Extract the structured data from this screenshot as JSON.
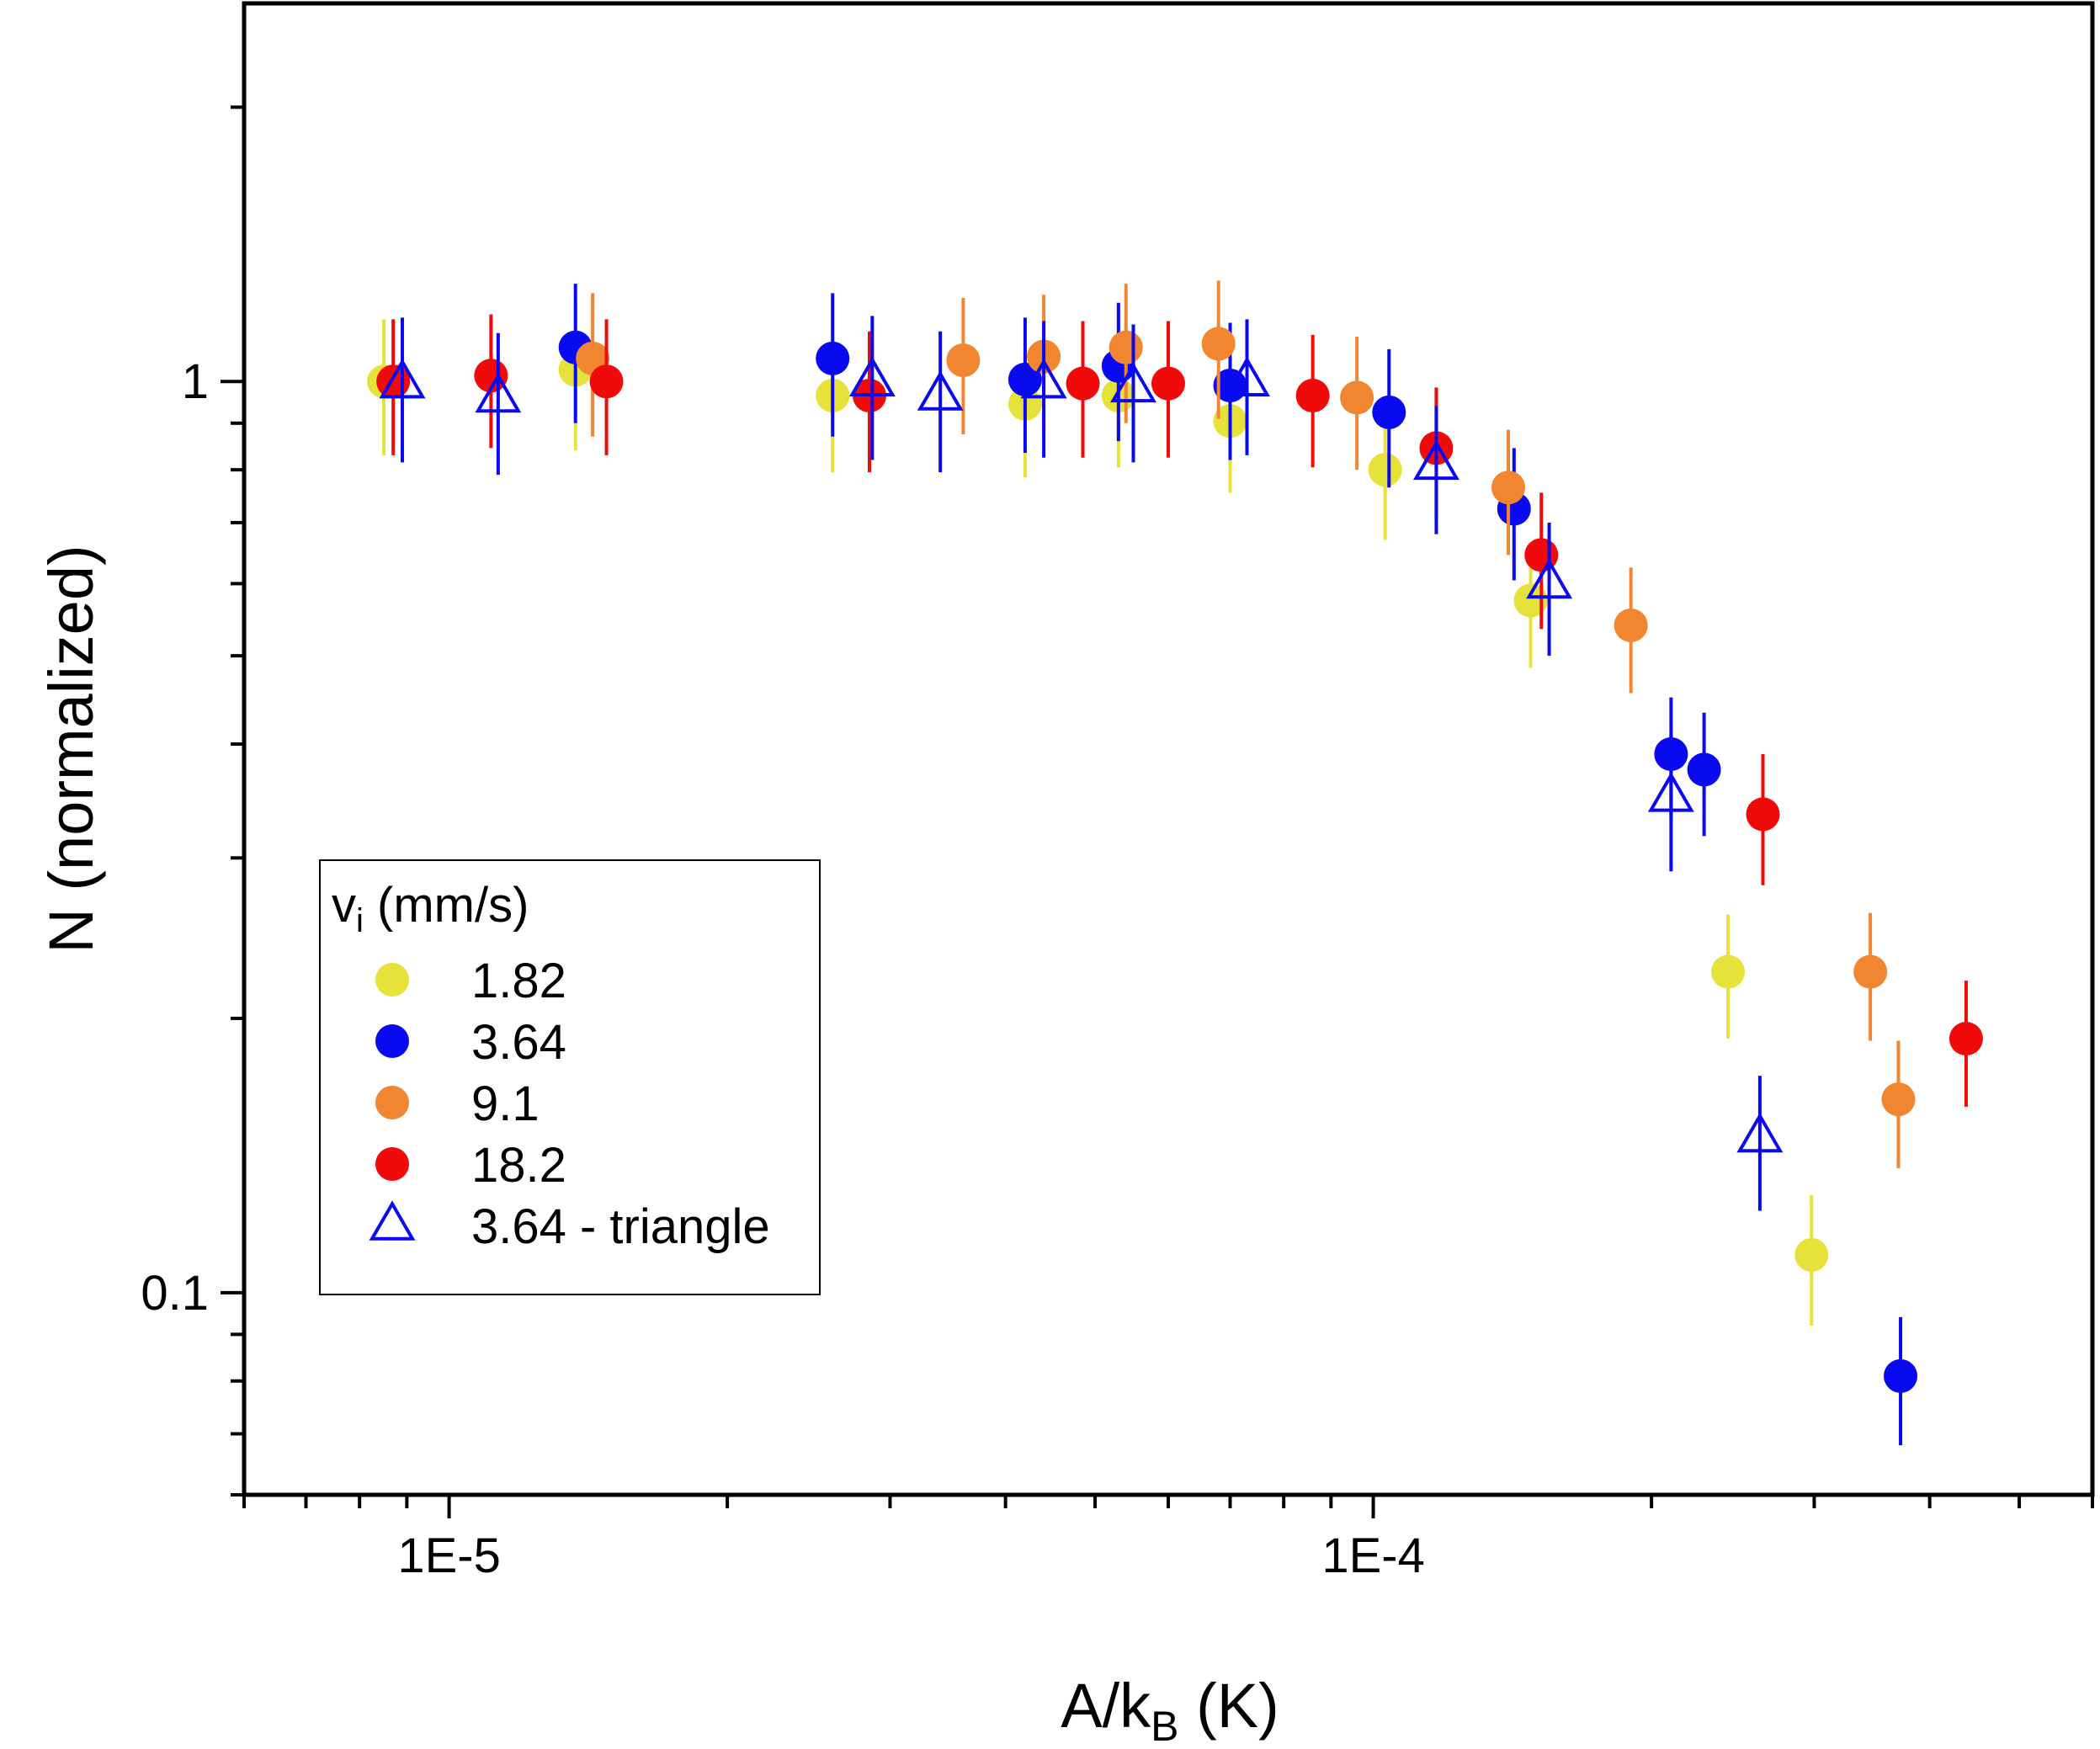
{
  "chart_data": {
    "type": "scatter",
    "xscale": "log",
    "yscale": "log",
    "xlabel": {
      "base": "A/k",
      "subscript": "B",
      "unit": " (K)"
    },
    "ylabel": "N (normalized)",
    "xlim": [
      6e-06,
      0.0006
    ],
    "ylim": [
      0.06,
      2.6
    ],
    "x_major_ticks": [
      {
        "value": 1e-05,
        "label": "1E-5"
      },
      {
        "value": 0.0001,
        "label": "1E-4"
      }
    ],
    "y_major_ticks": [
      {
        "value": 0.1,
        "label": "0.1"
      },
      {
        "value": 1,
        "label": "1"
      }
    ],
    "legend": {
      "title": {
        "base": "v",
        "subscript": "i",
        "rest": " (mm/s)"
      },
      "position": "bottom-left"
    },
    "series": [
      {
        "name": "1.82",
        "marker": "circle",
        "color": "#e6e23a",
        "points": [
          {
            "x": 8.5e-06,
            "y": 1.0,
            "err": 0.17
          },
          {
            "x": 1.37e-05,
            "y": 1.03,
            "err": 0.19
          },
          {
            "x": 2.6e-05,
            "y": 0.965,
            "err": 0.17
          },
          {
            "x": 4.2e-05,
            "y": 0.945,
            "err": 0.16
          },
          {
            "x": 5.3e-05,
            "y": 0.965,
            "err": 0.16
          },
          {
            "x": 7e-05,
            "y": 0.905,
            "err": 0.15
          },
          {
            "x": 0.000103,
            "y": 0.8,
            "err": 0.13
          },
          {
            "x": 0.000148,
            "y": 0.575,
            "err": 0.09
          },
          {
            "x": 0.000242,
            "y": 0.225,
            "err": 0.035
          },
          {
            "x": 0.000298,
            "y": 0.11,
            "err": 0.018
          }
        ]
      },
      {
        "name": "3.64",
        "marker": "circle",
        "color": "#0a0af0",
        "points": [
          {
            "x": 1.37e-05,
            "y": 1.09,
            "err": 0.19
          },
          {
            "x": 2.6e-05,
            "y": 1.06,
            "err": 0.19
          },
          {
            "x": 4.2e-05,
            "y": 1.005,
            "err": 0.17
          },
          {
            "x": 5.3e-05,
            "y": 1.04,
            "err": 0.18
          },
          {
            "x": 7e-05,
            "y": 0.99,
            "err": 0.17
          },
          {
            "x": 0.000104,
            "y": 0.925,
            "err": 0.16
          },
          {
            "x": 0.000142,
            "y": 0.725,
            "err": 0.12
          },
          {
            "x": 0.00021,
            "y": 0.39,
            "err": 0.06
          },
          {
            "x": 0.000228,
            "y": 0.375,
            "err": 0.058
          },
          {
            "x": 0.000372,
            "y": 0.081,
            "err": 0.013
          }
        ]
      },
      {
        "name": "9.1",
        "marker": "circle",
        "color": "#f28530",
        "points": [
          {
            "x": 1.43e-05,
            "y": 1.06,
            "err": 0.19
          },
          {
            "x": 3.6e-05,
            "y": 1.055,
            "err": 0.18
          },
          {
            "x": 4.4e-05,
            "y": 1.065,
            "err": 0.18
          },
          {
            "x": 5.4e-05,
            "y": 1.09,
            "err": 0.19
          },
          {
            "x": 6.8e-05,
            "y": 1.1,
            "err": 0.19
          },
          {
            "x": 9.6e-05,
            "y": 0.96,
            "err": 0.16
          },
          {
            "x": 0.00014,
            "y": 0.765,
            "err": 0.12
          },
          {
            "x": 0.00019,
            "y": 0.54,
            "err": 0.085
          },
          {
            "x": 0.000345,
            "y": 0.225,
            "err": 0.036
          },
          {
            "x": 0.00037,
            "y": 0.163,
            "err": 0.026
          }
        ]
      },
      {
        "name": "18.2",
        "marker": "circle",
        "color": "#f00a0a",
        "points": [
          {
            "x": 8.7e-06,
            "y": 1.0,
            "err": 0.17
          },
          {
            "x": 1.11e-05,
            "y": 1.015,
            "err": 0.17
          },
          {
            "x": 1.48e-05,
            "y": 1.0,
            "err": 0.17
          },
          {
            "x": 2.85e-05,
            "y": 0.965,
            "err": 0.17
          },
          {
            "x": 4.85e-05,
            "y": 0.995,
            "err": 0.17
          },
          {
            "x": 6e-05,
            "y": 0.995,
            "err": 0.17
          },
          {
            "x": 8.6e-05,
            "y": 0.965,
            "err": 0.16
          },
          {
            "x": 0.000117,
            "y": 0.845,
            "err": 0.14
          },
          {
            "x": 0.000152,
            "y": 0.645,
            "err": 0.11
          },
          {
            "x": 0.000264,
            "y": 0.335,
            "err": 0.055
          },
          {
            "x": 0.000438,
            "y": 0.19,
            "err": 0.03
          }
        ]
      },
      {
        "name": "3.64 - triangle",
        "marker": "triangle-open",
        "color": "#0a0af0",
        "points": [
          {
            "x": 8.9e-06,
            "y": 0.995,
            "err": 0.18
          },
          {
            "x": 1.13e-05,
            "y": 0.96,
            "err": 0.17
          },
          {
            "x": 2.87e-05,
            "y": 1.0,
            "err": 0.18
          },
          {
            "x": 3.4e-05,
            "y": 0.965,
            "err": 0.17
          },
          {
            "x": 4.4e-05,
            "y": 0.995,
            "err": 0.17
          },
          {
            "x": 5.5e-05,
            "y": 0.985,
            "err": 0.17
          },
          {
            "x": 7.3e-05,
            "y": 1.0,
            "err": 0.17
          },
          {
            "x": 0.000117,
            "y": 0.81,
            "err": 0.13
          },
          {
            "x": 0.000155,
            "y": 0.6,
            "err": 0.1
          },
          {
            "x": 0.00021,
            "y": 0.35,
            "err": 0.06
          },
          {
            "x": 0.000262,
            "y": 0.148,
            "err": 0.025
          }
        ]
      }
    ]
  }
}
